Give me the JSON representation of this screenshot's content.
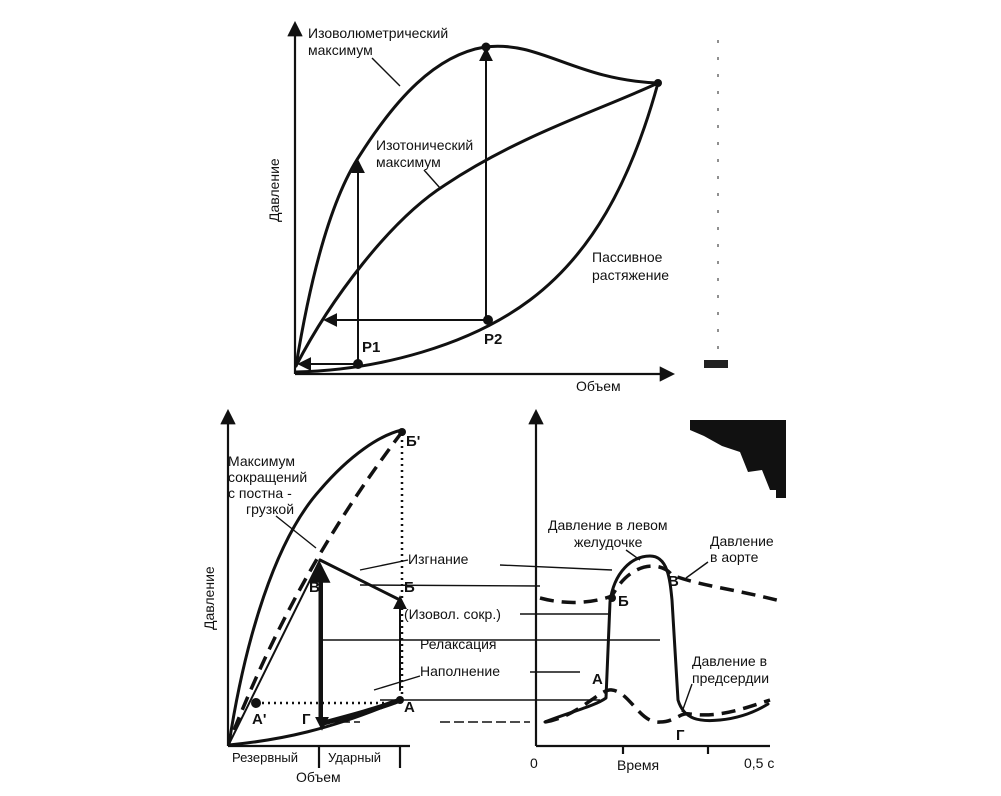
{
  "top_diagram": {
    "y_axis_label": "Давление",
    "x_axis_label": "Объем",
    "isovolumetric_label_line1": "Изоволюметрический",
    "isovolumetric_label_line2": "максимум",
    "isotonic_label_line1": "Изотонический",
    "isotonic_label_line2": "максимум",
    "passive_label_line1": "Пассивное",
    "passive_label_line2": "растяжение",
    "point_p1": "P1",
    "point_p2": "P2"
  },
  "bottom_left_diagram": {
    "y_axis_label": "Давление",
    "x_axis_label": "Объем",
    "reserve_label": "Резервный",
    "stroke_label": "Ударный",
    "max_label_line1": "Максимум",
    "max_label_line2": "сокращений",
    "max_label_line3": "с постна -",
    "max_label_line4": "грузкой",
    "point_a": "А",
    "point_a_prime": "А'",
    "point_b": "Б",
    "point_b_prime": "Б'",
    "point_v": "В",
    "point_g": "Г"
  },
  "phase_labels": {
    "ejection": "Изгнание",
    "isovol": "(Изовол. сокр.)",
    "relaxation": "Релаксация",
    "filling": "Наполнение"
  },
  "bottom_right_diagram": {
    "x_axis_label": "Время",
    "tick_zero": "0",
    "tick_half": "0,5 с",
    "lv_label_line1": "Давление в левом",
    "lv_label_line2": "желудочке",
    "aorta_label_line1": "Давление",
    "aorta_label_line2": "в аорте",
    "atrium_label_line1": "Давление в",
    "atrium_label_line2": "предсердии",
    "point_a": "А",
    "point_b": "Б",
    "point_v": "В",
    "point_g": "Г"
  }
}
